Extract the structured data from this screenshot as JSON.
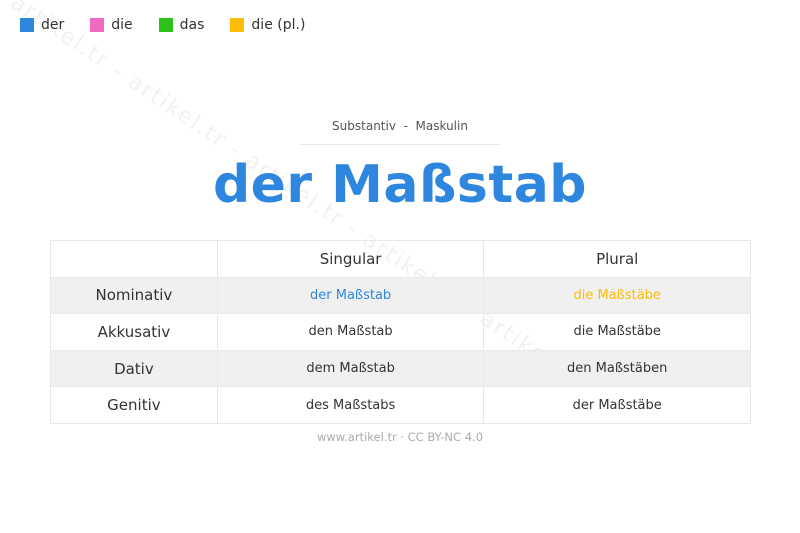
{
  "legend": [
    {
      "label": "der",
      "color": "#2e86de"
    },
    {
      "label": "die",
      "color": "#ef6ac0"
    },
    {
      "label": "das",
      "color": "#2ec11a"
    },
    {
      "label": "die (pl.)",
      "color": "#fbbd08"
    }
  ],
  "watermark": "artikel.tr - artikel.tr - artikel.tr - artikel.tr - artikel.tr",
  "subtitle": "Substantiv  -  Maskulin",
  "title": "der Maßstab",
  "title_color": "#2e86de",
  "table": {
    "headers": [
      "",
      "Singular",
      "Plural"
    ],
    "rows": [
      {
        "case": "Nominativ",
        "singular": "der Maßstab",
        "plural": "die Maßstäbe"
      },
      {
        "case": "Akkusativ",
        "singular": "den Maßstab",
        "plural": "die Maßstäbe"
      },
      {
        "case": "Dativ",
        "singular": "dem Maßstab",
        "plural": "den Maßstäben"
      },
      {
        "case": "Genitiv",
        "singular": "des Maßstabs",
        "plural": "der Maßstäbe"
      }
    ]
  },
  "footer": "www.artikel.tr · CC BY-NC 4.0"
}
